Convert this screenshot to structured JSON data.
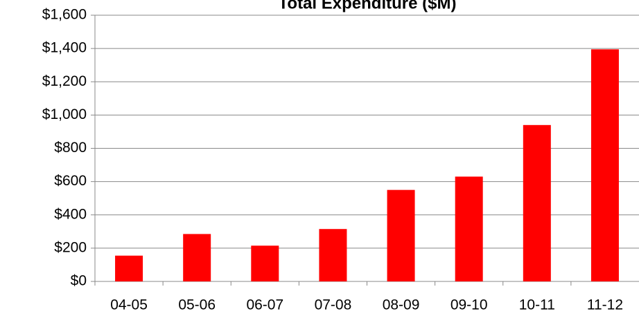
{
  "chart_data": {
    "type": "bar",
    "title": "Total Expenditure ($M)",
    "categories": [
      "04-05",
      "05-06",
      "06-07",
      "07-08",
      "08-09",
      "09-10",
      "10-11",
      "11-12"
    ],
    "values": [
      155,
      285,
      215,
      315,
      550,
      630,
      940,
      1395
    ],
    "color": "#ff0000",
    "ylim": [
      0,
      1600
    ],
    "yticks": [
      {
        "value": 0,
        "label": "$0"
      },
      {
        "value": 200,
        "label": "$200"
      },
      {
        "value": 400,
        "label": "$400"
      },
      {
        "value": 600,
        "label": "$600"
      },
      {
        "value": 800,
        "label": "$800"
      },
      {
        "value": 1000,
        "label": "$1,000"
      },
      {
        "value": 1200,
        "label": "$1,200"
      },
      {
        "value": 1400,
        "label": "$1,400"
      },
      {
        "value": 1600,
        "label": "$1,600"
      }
    ],
    "grid": true
  }
}
